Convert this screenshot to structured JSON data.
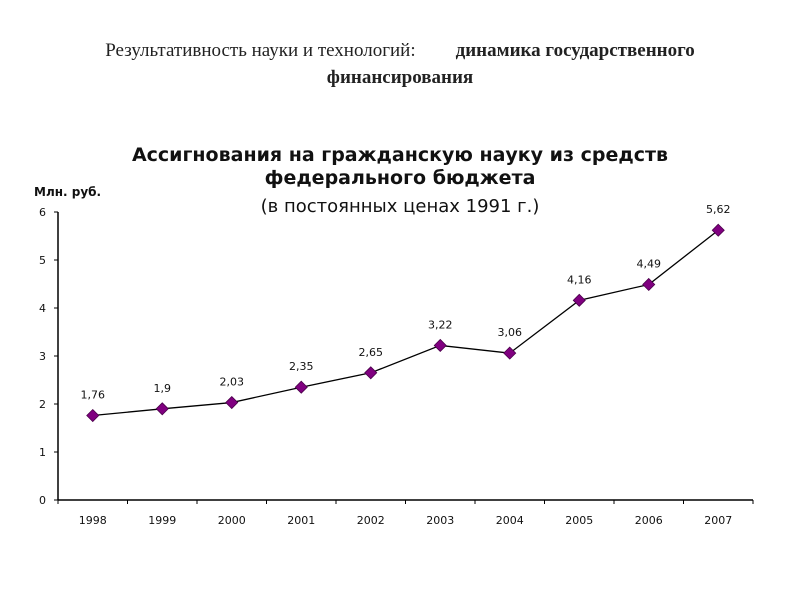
{
  "header": {
    "line1_regular": "Результативность науки и технологий:",
    "line1_bold": "динамика государственного",
    "line2_bold": "финансирования"
  },
  "chart_data": {
    "type": "line",
    "title": "Ассигнования на гражданскую науку из средств федерального бюджета",
    "title_line1": "Ассигнования на гражданскую науку из средств",
    "title_line2": "федерального бюджета",
    "subtitle": "(в постоянных ценах 1991 г.)",
    "ylabel": "Млн. руб.",
    "xlabel": "",
    "categories": [
      "1998",
      "1999",
      "2000",
      "2001",
      "2002",
      "2003",
      "2004",
      "2005",
      "2006",
      "2007"
    ],
    "values": [
      1.76,
      1.9,
      2.03,
      2.35,
      2.65,
      3.22,
      3.06,
      4.16,
      4.49,
      5.62
    ],
    "data_labels": [
      "1,76",
      "1,9",
      "2,03",
      "2,35",
      "2,65",
      "3,22",
      "3,06",
      "4,16",
      "4,49",
      "5,62"
    ],
    "ylim": [
      0,
      6
    ],
    "yticks": [
      0,
      1,
      2,
      3,
      4,
      5,
      6
    ],
    "grid": false,
    "legend": "none",
    "marker": "diamond",
    "colors": {
      "marker": "#800080",
      "line": "#000000"
    }
  }
}
